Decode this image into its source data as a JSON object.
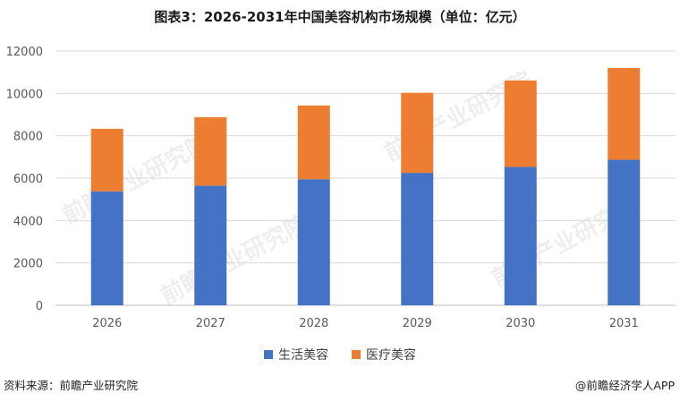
{
  "title": "图表3：2026-2031年中国美容机构市场规模（单位：亿元）",
  "footer": {
    "source": "资料来源：前瞻产业研究院",
    "brand": "@前瞻经济学人APP"
  },
  "watermark": "前瞻产业研究院",
  "colors": {
    "life_beauty": "#4472C4",
    "medical_beauty": "#ED7D31",
    "grid": "#D9D9D9",
    "axis": "#BFBFBF"
  },
  "chart_data": {
    "type": "bar",
    "stacked": true,
    "categories": [
      "2026",
      "2027",
      "2028",
      "2029",
      "2030",
      "2031"
    ],
    "series": [
      {
        "name": "生活美容",
        "values": [
          5380,
          5650,
          5950,
          6250,
          6530,
          6870
        ]
      },
      {
        "name": "医疗美容",
        "values": [
          2950,
          3230,
          3480,
          3780,
          4080,
          4330
        ]
      }
    ],
    "ylim": [
      0,
      12000
    ],
    "yticks": [
      0,
      2000,
      4000,
      6000,
      8000,
      10000,
      12000
    ],
    "grid": true,
    "legend_position": "bottom"
  }
}
